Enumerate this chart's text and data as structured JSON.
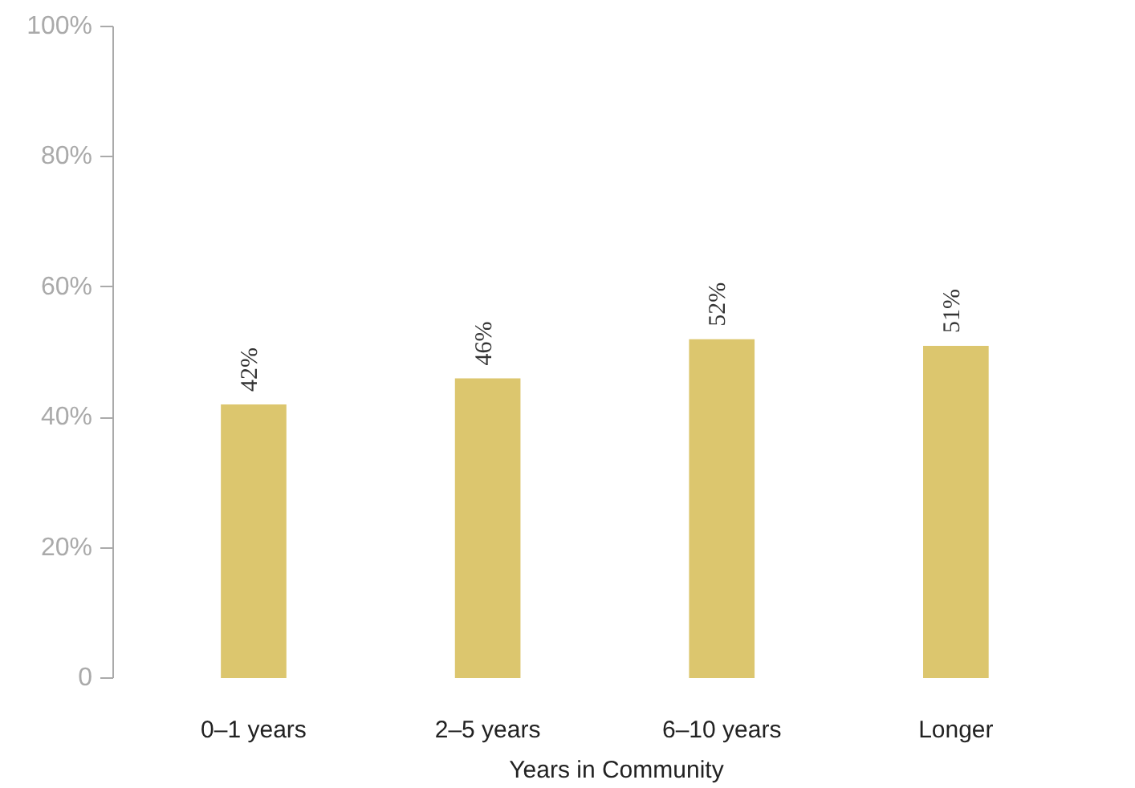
{
  "chart_data": {
    "type": "bar",
    "xlabel": "Years in Community",
    "categories": [
      "0–1 years",
      "2–5 years",
      "6–10 years",
      "Longer"
    ],
    "values": [
      42,
      46,
      52,
      51
    ],
    "value_labels": [
      "42%",
      "46%",
      "52%",
      "51%"
    ],
    "color": "#dcc66e",
    "ylim": [
      0,
      100
    ],
    "yticks": [
      {
        "value": 0,
        "label": "0"
      },
      {
        "value": 20,
        "label": "20%"
      },
      {
        "value": 40,
        "label": "40%"
      },
      {
        "value": 60,
        "label": "60%"
      },
      {
        "value": 80,
        "label": "80%"
      },
      {
        "value": 100,
        "label": "100%"
      }
    ],
    "grid": false
  }
}
